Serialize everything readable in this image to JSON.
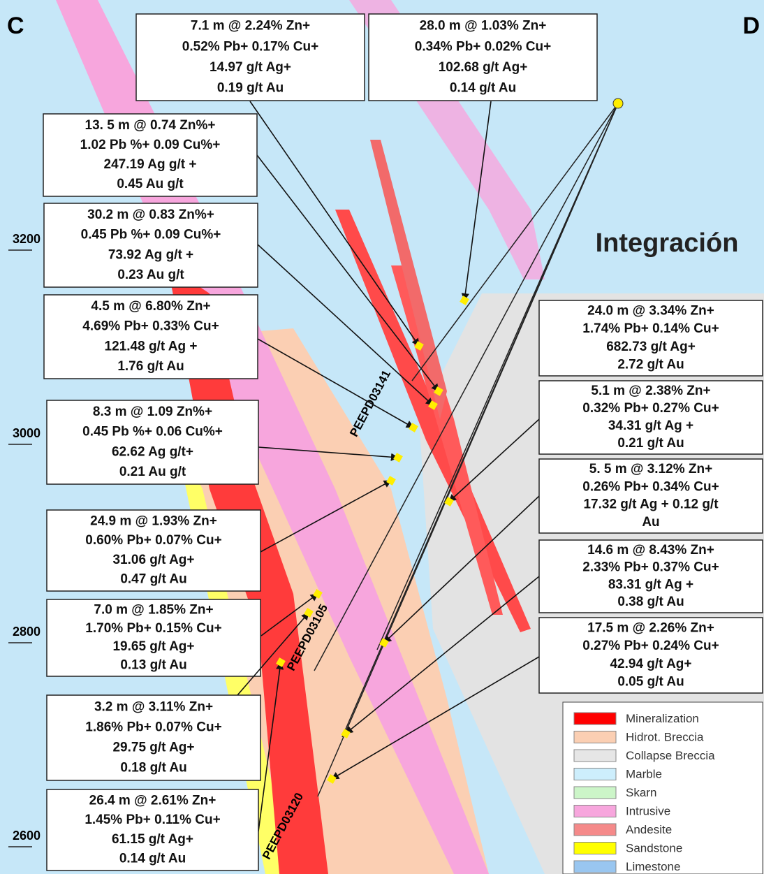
{
  "corners": [
    "C",
    "D"
  ],
  "title": "Integración",
  "elevations": [
    "3200",
    "3000",
    "2800",
    "2600"
  ],
  "drillholes": [
    "PEEPD03141",
    "PEEPD03105",
    "PEEPD03120"
  ],
  "intercepts": [
    {
      "lines": [
        "7.1 m @ 2.24% Zn+",
        "0.52% Pb+ 0.17% Cu+",
        "14.97 g/t Ag+",
        "0.19 g/t Au"
      ]
    },
    {
      "lines": [
        "28.0 m @ 1.03% Zn+",
        "0.34% Pb+ 0.02% Cu+",
        "102.68 g/t Ag+",
        "0.14 g/t Au"
      ]
    },
    {
      "lines": [
        "13. 5 m @ 0.74 Zn%+",
        "1.02 Pb %+ 0.09 Cu%+",
        "247.19 Ag g/t +",
        "0.45 Au g/t"
      ]
    },
    {
      "lines": [
        "30.2 m @ 0.83 Zn%+",
        "0.45 Pb %+ 0.09 Cu%+",
        "73.92 Ag g/t +",
        "0.23 Au g/t"
      ]
    },
    {
      "lines": [
        "4.5 m @ 6.80% Zn+",
        "4.69% Pb+ 0.33% Cu+",
        "121.48 g/t Ag +",
        "1.76 g/t Au"
      ]
    },
    {
      "lines": [
        "8.3 m @ 1.09 Zn%+",
        "0.45 Pb %+ 0.06 Cu%+",
        "62.62 Ag g/t+",
        "0.21 Au g/t"
      ]
    },
    {
      "lines": [
        "24.9 m @ 1.93% Zn+",
        "0.60% Pb+ 0.07% Cu+",
        "31.06 g/t Ag+",
        "0.47 g/t Au"
      ]
    },
    {
      "lines": [
        "7.0 m @ 1.85% Zn+",
        "1.70% Pb+ 0.15% Cu+",
        "19.65 g/t Ag+",
        "0.13 g/t Au"
      ]
    },
    {
      "lines": [
        "3.2 m @  3.11% Zn+",
        "1.86% Pb+ 0.07% Cu+",
        "29.75 g/t Ag+",
        "0.18 g/t Au"
      ]
    },
    {
      "lines": [
        "26.4 m @ 2.61% Zn+",
        "1.45% Pb+ 0.11% Cu+",
        "61.15 g/t Ag+",
        "0.14 g/t Au"
      ]
    },
    {
      "lines": [
        "24.0 m @ 3.34% Zn+",
        "1.74% Pb+ 0.14% Cu+",
        "682.73 g/t Ag+",
        "2.72 g/t Au"
      ]
    },
    {
      "lines": [
        "5.1 m @ 2.38% Zn+",
        "0.32% Pb+ 0.27% Cu+",
        "34.31 g/t Ag +",
        "0.21 g/t Au"
      ]
    },
    {
      "lines": [
        "5. 5 m @ 3.12% Zn+",
        "0.26% Pb+ 0.34% Cu+",
        "17.32 g/t Ag + 0.12 g/t",
        "Au"
      ]
    },
    {
      "lines": [
        "14.6 m @ 8.43% Zn+",
        "2.33% Pb+ 0.37% Cu+",
        "83.31 g/t Ag +",
        "0.38 g/t Au"
      ]
    },
    {
      "lines": [
        "17.5 m  @ 2.26% Zn+",
        "0.27% Pb+ 0.24% Cu+",
        "42.94 g/t Ag+",
        "0.05 g/t Au"
      ]
    }
  ],
  "legend": [
    {
      "label": "Mineralization",
      "color": "#ff0000"
    },
    {
      "label": "Hidrot. Breccia",
      "color": "#fbcfb3"
    },
    {
      "label": "Collapse Breccia",
      "color": "#e6e6e6"
    },
    {
      "label": "Marble",
      "color": "#cdeefc"
    },
    {
      "label": "Skarn",
      "color": "#ccf5c8"
    },
    {
      "label": "Intrusive",
      "color": "#f7a6dd"
    },
    {
      "label": "Andesite",
      "color": "#f58a8a"
    },
    {
      "label": "Sandstone",
      "color": "#ffff00"
    },
    {
      "label": "Limestone",
      "color": "#99c6f0"
    }
  ]
}
